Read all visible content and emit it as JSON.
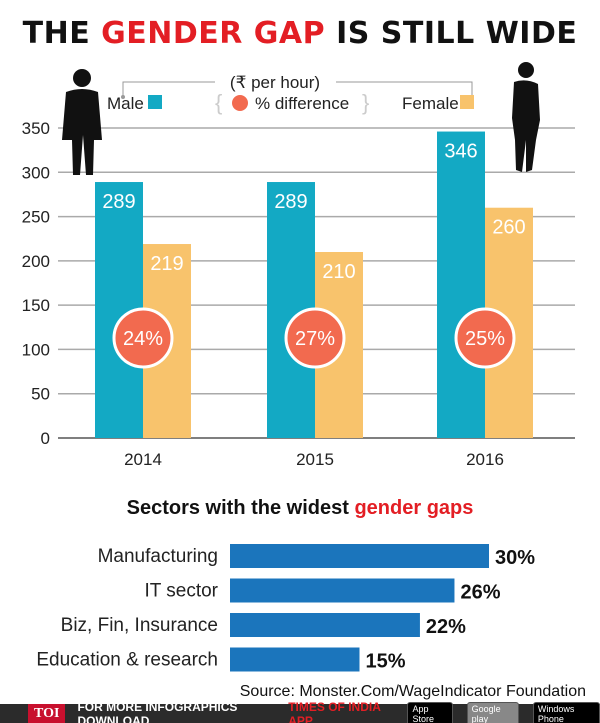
{
  "title": {
    "part1": "THE ",
    "highlight": "GENDER GAP",
    "part2": " IS STILL WIDE"
  },
  "legend": {
    "unit": "(₹ per hour)",
    "male": "Male",
    "diff": "% difference",
    "female": "Female"
  },
  "colors": {
    "male": "#13A9C4",
    "female": "#F8C36C",
    "diff": "#F26A4F",
    "sector": "#1B75BC",
    "accent": "#E31E24"
  },
  "chart_data": [
    {
      "type": "bar",
      "categories": [
        "2014",
        "2015",
        "2016"
      ],
      "series": [
        {
          "name": "Male",
          "values": [
            289,
            289,
            346
          ]
        },
        {
          "name": "Female",
          "values": [
            219,
            210,
            260
          ]
        }
      ],
      "annotations": [
        "24%",
        "27%",
        "25%"
      ],
      "annotation_name": "% difference",
      "yticks": [
        "0",
        "50",
        "100",
        "150",
        "200",
        "250",
        "300",
        "350"
      ],
      "ylim": [
        0,
        350
      ],
      "grid": true,
      "legend": "top"
    },
    {
      "type": "bar",
      "orientation": "horizontal",
      "title": {
        "part1": "Sectors with the widest ",
        "highlight": "gender gaps"
      },
      "categories": [
        "Manufacturing",
        "IT sector",
        "Biz, Fin, Insurance",
        "Education & research"
      ],
      "values": [
        30,
        26,
        22,
        15
      ],
      "labels": [
        "30%",
        "26%",
        "22%",
        "15%"
      ]
    }
  ],
  "source": "Source: Monster.Com/WageIndicator Foundation",
  "footer": {
    "logo": "TOI",
    "text": "FOR MORE  INFOGRAPHICS DOWNLOAD",
    "app": "TIMES OF INDIA  APP",
    "badges": [
      "App Store",
      "Google play",
      "Windows Phone"
    ]
  }
}
